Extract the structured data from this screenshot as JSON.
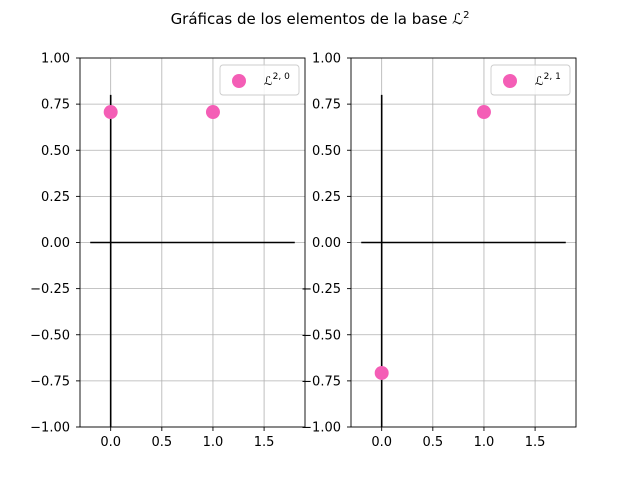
{
  "figure": {
    "title_prefix": "Gráficas de los elementos de la base ",
    "title_symbol": "ℒ",
    "title_sup": "2"
  },
  "colors": {
    "marker": "#f45eb6",
    "grid": "#b0b0b0",
    "axes_lines": "#000000",
    "frame": "#000000"
  },
  "chart_data": [
    {
      "type": "scatter",
      "title": "",
      "xlabel": "",
      "ylabel": "",
      "xlim": [
        -0.3,
        1.9
      ],
      "ylim": [
        -1.0,
        1.0
      ],
      "xticks": [
        0.0,
        0.5,
        1.0,
        1.5
      ],
      "xtick_labels": [
        "0.0",
        "0.5",
        "1.0",
        "1.5"
      ],
      "yticks": [
        -1.0,
        -0.75,
        -0.5,
        -0.25,
        0.0,
        0.25,
        0.5,
        0.75,
        1.0
      ],
      "ytick_labels": [
        "−1.00",
        "−0.75",
        "−0.50",
        "−0.25",
        "0.00",
        "0.25",
        "0.50",
        "0.75",
        "1.00"
      ],
      "grid": true,
      "legend_position": "top-right",
      "reference_lines": {
        "horizontal": {
          "y": 0,
          "x_from": -0.2,
          "x_to": 1.8
        },
        "vertical": {
          "x": 0,
          "y_from": -1.0,
          "y_to": 0.8
        }
      },
      "series": [
        {
          "legend_symbol": "ℒ",
          "legend_sup": "2, 0",
          "x": [
            0,
            1
          ],
          "y": [
            0.7071,
            0.7071
          ]
        }
      ]
    },
    {
      "type": "scatter",
      "title": "",
      "xlabel": "",
      "ylabel": "",
      "xlim": [
        -0.3,
        1.9
      ],
      "ylim": [
        -1.0,
        1.0
      ],
      "xticks": [
        0.0,
        0.5,
        1.0,
        1.5
      ],
      "xtick_labels": [
        "0.0",
        "0.5",
        "1.0",
        "1.5"
      ],
      "yticks": [
        -1.0,
        -0.75,
        -0.5,
        -0.25,
        0.0,
        0.25,
        0.5,
        0.75,
        1.0
      ],
      "ytick_labels": [
        "−1.00",
        "−0.75",
        "−0.50",
        "−0.25",
        "0.00",
        "0.25",
        "0.50",
        "0.75",
        "1.00"
      ],
      "grid": true,
      "legend_position": "top-right",
      "reference_lines": {
        "horizontal": {
          "y": 0,
          "x_from": -0.2,
          "x_to": 1.8
        },
        "vertical": {
          "x": 0,
          "y_from": -1.0,
          "y_to": 0.8
        }
      },
      "series": [
        {
          "legend_symbol": "ℒ",
          "legend_sup": "2, 1",
          "x": [
            0,
            1
          ],
          "y": [
            -0.7071,
            0.7071
          ]
        }
      ]
    }
  ]
}
